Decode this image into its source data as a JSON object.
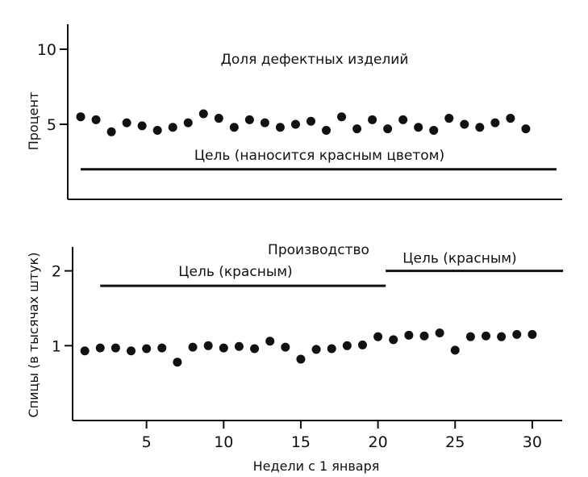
{
  "chart_data": [
    {
      "type": "scatter",
      "title": "Доля дефектных изделий",
      "ylabel": "Процент",
      "xlabel": "",
      "ylim": [
        0,
        11
      ],
      "xlim": [
        0,
        32
      ],
      "yticks": [
        5,
        10
      ],
      "ytick_labels": [
        "5",
        "10"
      ],
      "x": [
        1,
        2,
        3,
        4,
        5,
        6,
        7,
        8,
        9,
        10,
        11,
        12,
        13,
        14,
        15,
        16,
        17,
        18,
        19,
        20,
        21,
        22,
        23,
        24,
        25,
        26,
        27,
        28,
        29,
        30
      ],
      "values": [
        5.5,
        5.3,
        4.5,
        5.1,
        4.9,
        4.6,
        4.8,
        5.1,
        5.7,
        5.4,
        4.8,
        5.3,
        5.1,
        4.8,
        5.0,
        5.2,
        4.6,
        5.5,
        4.7,
        5.3,
        4.7,
        5.3,
        4.8,
        4.6,
        5.4,
        5.0,
        4.8,
        5.1,
        5.4,
        4.7
      ],
      "goals": [
        {
          "label": "Цель (наносится красным цветом)",
          "value": 2.0,
          "x_start": 1,
          "x_end": 32
        }
      ]
    },
    {
      "type": "scatter",
      "title": "Производство",
      "ylabel": "Спицы (в тысячах штук)",
      "xlabel": "Недели с 1 января",
      "ylim": [
        0,
        2.2
      ],
      "xlim": [
        0,
        33
      ],
      "yticks": [
        1,
        2
      ],
      "ytick_labels": [
        "1",
        "2"
      ],
      "xticks": [
        5,
        10,
        15,
        20,
        25,
        30
      ],
      "xtick_labels": [
        "5",
        "10",
        "15",
        "20",
        "25",
        "30"
      ],
      "x": [
        1,
        2,
        3,
        4,
        5,
        6,
        7,
        8,
        9,
        10,
        11,
        12,
        13,
        14,
        15,
        16,
        17,
        18,
        19,
        20,
        21,
        22,
        23,
        24,
        25,
        26,
        27,
        28,
        29,
        30
      ],
      "values": [
        0.93,
        0.97,
        0.97,
        0.93,
        0.96,
        0.97,
        0.78,
        0.98,
        1.0,
        0.97,
        0.99,
        0.96,
        1.06,
        0.98,
        0.82,
        0.95,
        0.96,
        1.0,
        1.01,
        1.12,
        1.08,
        1.14,
        1.13,
        1.17,
        0.94,
        1.12,
        1.13,
        1.12,
        1.15,
        1.15
      ],
      "goals": [
        {
          "label": "Цель (красным)",
          "value": 1.8,
          "x_start": 2,
          "x_end": 20.5
        },
        {
          "label": "Цель (красным)",
          "value": 2.0,
          "x_start": 20.5,
          "x_end": 32
        }
      ]
    }
  ]
}
